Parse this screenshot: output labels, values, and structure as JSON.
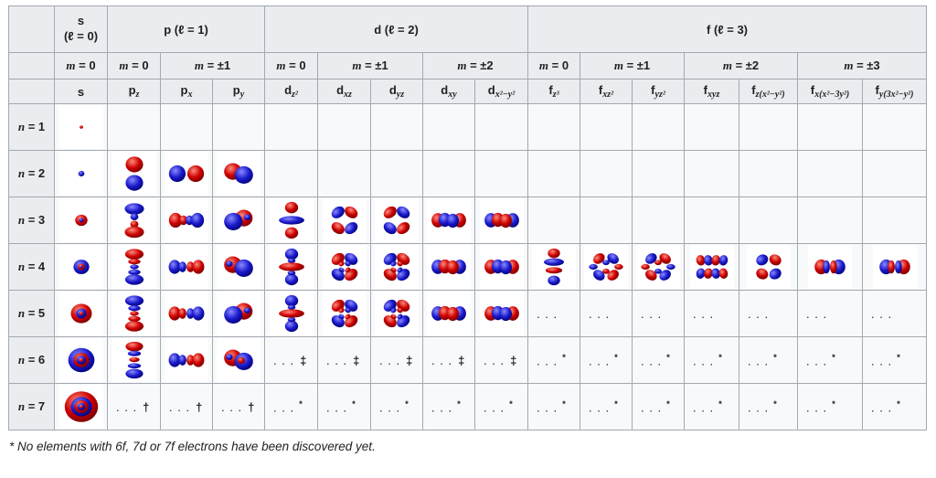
{
  "colors": {
    "red": "#cc0000",
    "blue": "#1a1acc",
    "header_bg": "#eaecf0",
    "cell_bg": "#f8f9fa",
    "border": "#a2a9b1",
    "image_bg": "#ffffff"
  },
  "footnote": "* No elements with 6f, 7d or 7f electrons have been discovered yet.",
  "table": {
    "dots": ". . .",
    "col_groups": [
      {
        "label": "s",
        "sub": "(ℓ = 0)",
        "span": 1,
        "stack": true
      },
      {
        "label": "p",
        "sub": "(ℓ = 1)",
        "span": 3
      },
      {
        "label": "d",
        "sub": "(ℓ = 2)",
        "span": 5
      },
      {
        "label": "f",
        "sub": "(ℓ = 3)",
        "span": 7
      }
    ],
    "m_groups": [
      {
        "label": "m = 0",
        "span": 1
      },
      {
        "label": "m = 0",
        "span": 1
      },
      {
        "label": "m = ±1",
        "span": 2
      },
      {
        "label": "m = 0",
        "span": 1
      },
      {
        "label": "m = ±1",
        "span": 2
      },
      {
        "label": "m = ±2",
        "span": 2
      },
      {
        "label": "m = 0",
        "span": 1
      },
      {
        "label": "m = ±1",
        "span": 2
      },
      {
        "label": "m = ±2",
        "span": 2
      },
      {
        "label": "m = ±3",
        "span": 2
      }
    ],
    "columns": [
      {
        "id": "s",
        "base": "s",
        "sub": ""
      },
      {
        "id": "pz",
        "base": "p",
        "sub": "z"
      },
      {
        "id": "px",
        "base": "p",
        "sub": "x"
      },
      {
        "id": "py",
        "base": "p",
        "sub": "y"
      },
      {
        "id": "dz2",
        "base": "d",
        "sub": "z²"
      },
      {
        "id": "dxz",
        "base": "d",
        "sub": "xz"
      },
      {
        "id": "dyz",
        "base": "d",
        "sub": "yz"
      },
      {
        "id": "dxy",
        "base": "d",
        "sub": "xy"
      },
      {
        "id": "dx2y2",
        "base": "d",
        "sub": "x²−y²"
      },
      {
        "id": "fz3",
        "base": "f",
        "sub": "z³"
      },
      {
        "id": "fxz2",
        "base": "f",
        "sub": "xz²"
      },
      {
        "id": "fyz2",
        "base": "f",
        "sub": "yz²"
      },
      {
        "id": "fxyz",
        "base": "f",
        "sub": "xyz"
      },
      {
        "id": "fzx2y2",
        "base": "f",
        "sub": "z(x²−y²)"
      },
      {
        "id": "fxx23y2",
        "base": "f",
        "sub": "x(x²−3y²)"
      },
      {
        "id": "fy3x2y2",
        "base": "f",
        "sub": "y(3x²−y²)"
      }
    ],
    "rows": [
      {
        "n": "n = 1",
        "cells": [
          {
            "o": "s",
            "rings": [
              [
                2,
                "R"
              ]
            ]
          },
          null,
          null,
          null,
          null,
          null,
          null,
          null,
          null,
          null,
          null,
          null,
          null,
          null,
          null,
          null
        ]
      },
      {
        "n": "n = 2",
        "cells": [
          {
            "o": "s",
            "rings": [
              [
                3.5,
                "B"
              ]
            ]
          },
          {
            "o": "pv",
            "c": [
              "R",
              "B"
            ],
            "L": 0
          },
          {
            "o": "ph",
            "c": [
              "B",
              "R"
            ],
            "L": 0
          },
          {
            "o": "po",
            "c": [
              "R",
              "B"
            ],
            "L": 0
          },
          null,
          null,
          null,
          null,
          null,
          null,
          null,
          null,
          null,
          null,
          null,
          null
        ]
      },
      {
        "n": "n = 3",
        "cells": [
          {
            "o": "s",
            "rings": [
              [
                7,
                "R"
              ],
              [
                2.5,
                "B"
              ]
            ]
          },
          {
            "o": "pv",
            "c": [
              "B",
              "R"
            ],
            "L": 1
          },
          {
            "o": "ph",
            "c": [
              "R",
              "B"
            ],
            "L": 1
          },
          {
            "o": "po",
            "c": [
              "R",
              "B"
            ],
            "f": 1,
            "L": 1
          },
          {
            "o": "dz2",
            "c": [
              "R",
              "B"
            ],
            "L": 0
          },
          {
            "o": "dx",
            "c": [
              "B",
              "R",
              "R",
              "B"
            ],
            "L": 0
          },
          {
            "o": "dx",
            "c": [
              "R",
              "B",
              "B",
              "R"
            ],
            "L": 0
          },
          {
            "o": "dh",
            "c": [
              "R",
              "B"
            ]
          },
          {
            "o": "dh",
            "c": [
              "B",
              "R"
            ]
          },
          null,
          null,
          null,
          null,
          null,
          null,
          null
        ]
      },
      {
        "n": "n = 4",
        "cells": [
          {
            "o": "s",
            "rings": [
              [
                9,
                "B"
              ],
              [
                4,
                "R"
              ],
              [
                1.5,
                "B"
              ]
            ]
          },
          {
            "o": "pv",
            "c": [
              "R",
              "B"
            ],
            "L": 2
          },
          {
            "o": "ph",
            "c": [
              "B",
              "R"
            ],
            "L": 2
          },
          {
            "o": "po",
            "c": [
              "R",
              "B"
            ],
            "L": 1
          },
          {
            "o": "dz2",
            "c": [
              "B",
              "R"
            ],
            "L": 1
          },
          {
            "o": "dx",
            "c": [
              "R",
              "B",
              "B",
              "R"
            ],
            "L": 1
          },
          {
            "o": "dx",
            "c": [
              "B",
              "R",
              "R",
              "B"
            ],
            "L": 1
          },
          {
            "o": "dh",
            "c": [
              "B",
              "R"
            ]
          },
          {
            "o": "dh",
            "c": [
              "R",
              "B"
            ]
          },
          {
            "o": "fz3",
            "c": [
              "R",
              "B"
            ]
          },
          {
            "o": "f6",
            "c": [
              "R",
              "B"
            ]
          },
          {
            "o": "f6",
            "c": [
              "B",
              "R"
            ]
          },
          {
            "o": "f8",
            "c": [
              "R",
              "B"
            ]
          },
          {
            "o": "f4",
            "c": [
              "B",
              "R"
            ]
          },
          {
            "o": "fh",
            "c": [
              "R",
              "B"
            ]
          },
          {
            "o": "fh",
            "c": [
              "B",
              "R"
            ]
          }
        ]
      },
      {
        "n": "n = 5",
        "cells": [
          {
            "o": "s",
            "rings": [
              [
                12,
                "R"
              ],
              [
                6,
                "B"
              ],
              [
                2.5,
                "R"
              ]
            ]
          },
          {
            "o": "pv",
            "c": [
              "B",
              "R"
            ],
            "L": 2
          },
          {
            "o": "ph",
            "c": [
              "R",
              "B"
            ],
            "L": 2
          },
          {
            "o": "po",
            "c": [
              "R",
              "B"
            ],
            "f": 1,
            "L": 1
          },
          {
            "o": "dz2",
            "c": [
              "B",
              "R"
            ],
            "L": 1
          },
          {
            "o": "dx",
            "c": [
              "R",
              "B",
              "B",
              "R"
            ],
            "L": 1
          },
          {
            "o": "dx",
            "c": [
              "B",
              "R",
              "R",
              "B"
            ],
            "L": 1
          },
          {
            "o": "dh",
            "c": [
              "B",
              "R"
            ]
          },
          {
            "o": "dh",
            "c": [
              "R",
              "B"
            ]
          },
          {
            "t": ""
          },
          {
            "t": ""
          },
          {
            "t": ""
          },
          {
            "t": ""
          },
          {
            "t": ""
          },
          {
            "t": ""
          },
          {
            "t": ""
          }
        ]
      },
      {
        "n": "n = 6",
        "cells": [
          {
            "o": "s",
            "rings": [
              [
                15,
                "B"
              ],
              [
                9,
                "R"
              ],
              [
                5.5,
                "B"
              ],
              [
                2.5,
                "R"
              ]
            ]
          },
          {
            "o": "pv",
            "c": [
              "R",
              "B"
            ],
            "L": 3
          },
          {
            "o": "ph",
            "c": [
              "B",
              "R"
            ],
            "L": 2
          },
          {
            "o": "po",
            "c": [
              "R",
              "B"
            ],
            "L": 2
          },
          {
            "t": "‡"
          },
          {
            "t": "‡"
          },
          {
            "t": "‡"
          },
          {
            "t": "‡"
          },
          {
            "t": "‡"
          },
          {
            "t": "*",
            "sup": 1
          },
          {
            "t": "*",
            "sup": 1
          },
          {
            "t": "*",
            "sup": 1
          },
          {
            "t": "*",
            "sup": 1
          },
          {
            "t": "*",
            "sup": 1
          },
          {
            "t": "*",
            "sup": 1
          },
          {
            "t": "*",
            "sup": 1
          }
        ]
      },
      {
        "n": "n = 7",
        "cells": [
          {
            "o": "s",
            "rings": [
              [
                19,
                "R"
              ],
              [
                12,
                "B"
              ],
              [
                8,
                "R"
              ],
              [
                4.5,
                "B"
              ],
              [
                2,
                "R"
              ]
            ]
          },
          {
            "t": "†"
          },
          {
            "t": "†"
          },
          {
            "t": "†"
          },
          {
            "t": "*",
            "sup": 1
          },
          {
            "t": "*",
            "sup": 1
          },
          {
            "t": "*",
            "sup": 1
          },
          {
            "t": "*",
            "sup": 1
          },
          {
            "t": "*",
            "sup": 1
          },
          {
            "t": "*",
            "sup": 1
          },
          {
            "t": "*",
            "sup": 1
          },
          {
            "t": "*",
            "sup": 1
          },
          {
            "t": "*",
            "sup": 1
          },
          {
            "t": "*",
            "sup": 1
          },
          {
            "t": "*",
            "sup": 1
          },
          {
            "t": "*",
            "sup": 1
          }
        ]
      }
    ]
  }
}
